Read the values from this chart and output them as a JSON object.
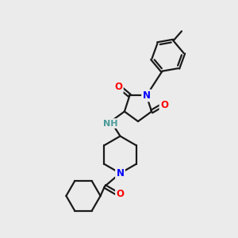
{
  "bg_color": "#ebebeb",
  "bond_color": "#1a1a1a",
  "N_color": "#0000ff",
  "O_color": "#ff0000",
  "NH_color": "#4a9a9a",
  "line_width": 1.6,
  "font_size_atom": 8.5,
  "figsize": [
    3.0,
    3.0
  ],
  "dpi": 100,
  "xlim": [
    0,
    10
  ],
  "ylim": [
    0,
    10
  ]
}
